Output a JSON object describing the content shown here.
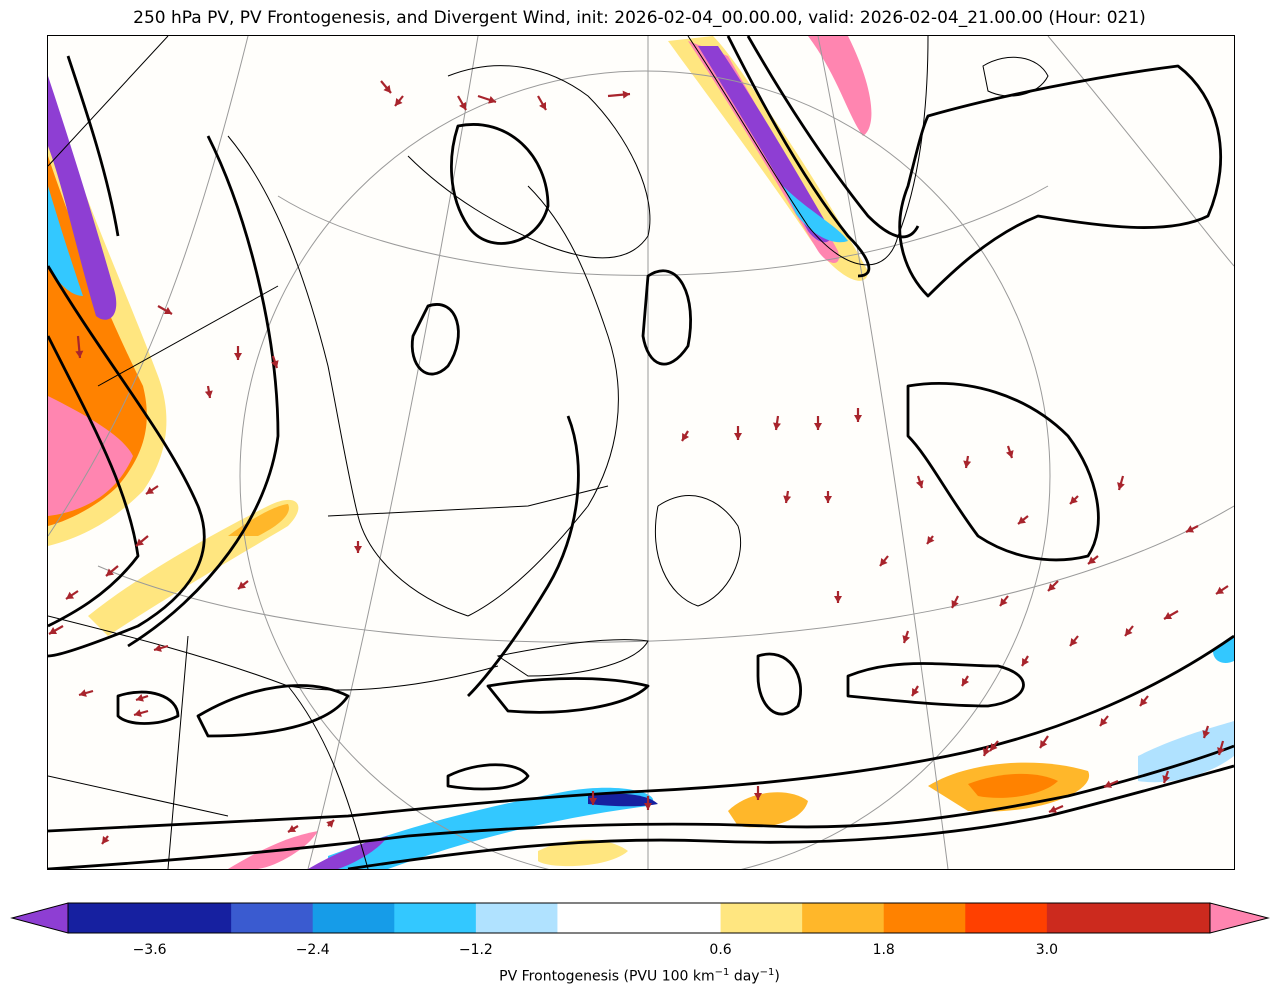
{
  "figure": {
    "title": "250 hPa PV, PV Frontogenesis, and Divergent Wind, init: 2026-02-04_00.00.00, valid: 2026-02-04_21.00.00 (Hour: 021)"
  },
  "colorbar": {
    "label_prefix": "PV Frontogenesis (PVU 100 km",
    "label_exp1": "−1",
    "label_mid": " day",
    "label_exp2": "−1",
    "label_suffix": ")",
    "min": -4.2,
    "max": 4.2,
    "extend": "both",
    "under_color": "#8e3ed3",
    "over_color": "#ff85b0",
    "bins": [
      {
        "from": -4.2,
        "to": -3.6,
        "color": "#1620a0"
      },
      {
        "from": -3.6,
        "to": -3.0,
        "color": "#1620a0"
      },
      {
        "from": -3.0,
        "to": -2.4,
        "color": "#3a5bd0"
      },
      {
        "from": -2.4,
        "to": -1.8,
        "color": "#169ce8"
      },
      {
        "from": -1.8,
        "to": -1.2,
        "color": "#33c8ff"
      },
      {
        "from": -1.2,
        "to": -0.6,
        "color": "#b0e2ff"
      },
      {
        "from": -0.6,
        "to": 0.0,
        "color": "#ffffff"
      },
      {
        "from": 0.0,
        "to": 0.6,
        "color": "#ffffff"
      },
      {
        "from": 0.6,
        "to": 1.2,
        "color": "#ffe680"
      },
      {
        "from": 1.2,
        "to": 1.8,
        "color": "#ffb72a"
      },
      {
        "from": 1.8,
        "to": 2.4,
        "color": "#ff8200"
      },
      {
        "from": 2.4,
        "to": 3.0,
        "color": "#ff4000"
      },
      {
        "from": 3.0,
        "to": 3.6,
        "color": "#cc2a1e"
      },
      {
        "from": 3.6,
        "to": 4.2,
        "color": "#cc2a1e"
      }
    ],
    "tick_values": [
      -3.6,
      -2.4,
      -1.2,
      0.6,
      1.8,
      3.0
    ],
    "tick_labels": [
      "−3.6",
      "−2.4",
      "−1.2",
      "0.6",
      "1.8",
      "3.0"
    ]
  },
  "map": {
    "projection": "polar-stereographic",
    "region": "northeastern North America and North Atlantic",
    "pv_contour_color": "#000000",
    "wind_vector_color": "#a8242c",
    "graticule_color": "#9a9a9a",
    "boundary_color": "#000000"
  }
}
